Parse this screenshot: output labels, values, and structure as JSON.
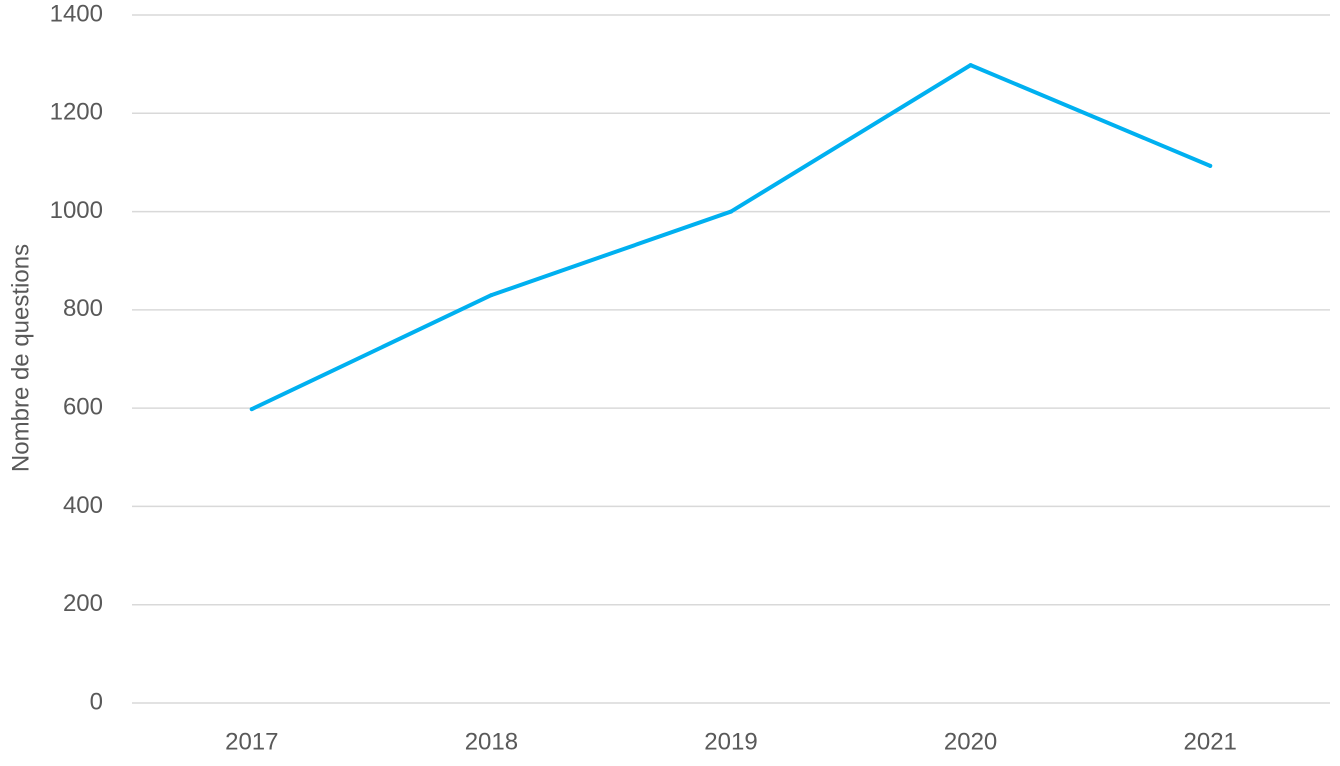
{
  "chart_data": {
    "type": "line",
    "title": "",
    "xlabel": "",
    "ylabel": "Nombre de questions",
    "categories": [
      "2017",
      "2018",
      "2019",
      "2020",
      "2021"
    ],
    "series": [
      {
        "values": [
          598,
          830,
          1000,
          1298,
          1093
        ]
      }
    ],
    "ylim": [
      0,
      1400
    ],
    "yticks": [
      0,
      200,
      400,
      600,
      800,
      1000,
      1200,
      1400
    ],
    "ytick_labels": [
      "0",
      "200",
      "400",
      "600",
      "800",
      "1000",
      "1200",
      "1400"
    ],
    "grid": true,
    "legend": "none"
  },
  "colors": {
    "series": "#00b0f0",
    "grid": "#d9d9d9",
    "text": "#595959"
  }
}
